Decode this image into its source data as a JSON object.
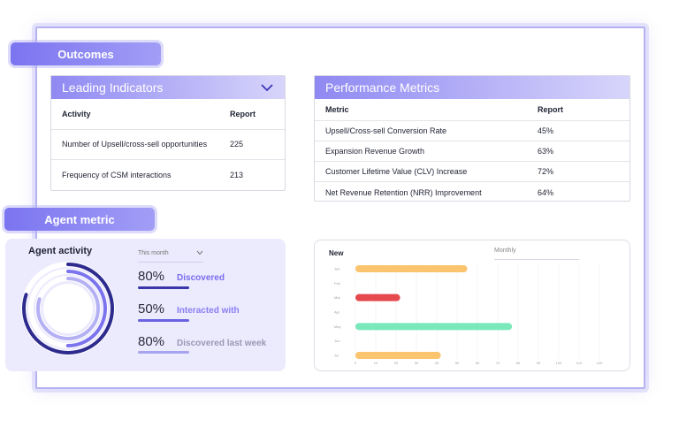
{
  "tags": {
    "outcomes": "Outcomes",
    "agent_metric": "Agent metric"
  },
  "leading_indicators": {
    "title": "Leading Indicators",
    "columns": [
      "Activity",
      "Report"
    ],
    "rows": [
      {
        "activity": "Number of Upsell/cross-sell opportunities",
        "report": "225"
      },
      {
        "activity": "Frequency of CSM interactions",
        "report": "213"
      }
    ]
  },
  "performance_metrics": {
    "title": "Performance Metrics",
    "columns": [
      "Metric",
      "Report"
    ],
    "rows": [
      {
        "metric": "Upsell/Cross-sell Conversion Rate",
        "report": "45%"
      },
      {
        "metric": "Expansion Revenue Growth",
        "report": "63%"
      },
      {
        "metric": "Customer Lifetime Value (CLV) Increase",
        "report": "72%"
      },
      {
        "metric": "Net Revenue Retention (NRR) Improvement",
        "report": "64%"
      }
    ]
  },
  "agent": {
    "title": "Agent activity",
    "period": "This month",
    "stats": [
      {
        "value": "80%",
        "label": "Discovered",
        "color": "#7a6cf0",
        "bar_color": "#3a35a8"
      },
      {
        "value": "50%",
        "label": "Interacted with",
        "color": "#8a7ef2",
        "bar_color": "#6a62e0"
      },
      {
        "value": "80%",
        "label": "Discovered last week",
        "color": "#9a97b5",
        "bar_color": "#a7a3ef"
      }
    ],
    "rings": [
      {
        "progress": 0.8,
        "color": "#2e2b8f"
      },
      {
        "progress": 0.5,
        "color": "#7c74ef"
      },
      {
        "progress": 0.8,
        "color": "#b4b0f4"
      }
    ]
  },
  "chart": {
    "new_label": "New",
    "period": "Monthly"
  },
  "chart_data": {
    "type": "bar",
    "orientation": "horizontal",
    "categories": [
      "Jan",
      "Feb",
      "Mar",
      "Apr",
      "May",
      "Jun",
      "Jul"
    ],
    "values": [
      55,
      null,
      22,
      null,
      77,
      null,
      42
    ],
    "colors": [
      "#fbc46e",
      null,
      "#e5484d",
      null,
      "#79e8bb",
      null,
      "#fbc46e"
    ],
    "x_ticks": [
      0,
      10,
      20,
      30,
      40,
      50,
      60,
      70,
      80,
      90,
      100,
      110,
      120
    ],
    "xlim": [
      0,
      120
    ],
    "grid": true
  }
}
